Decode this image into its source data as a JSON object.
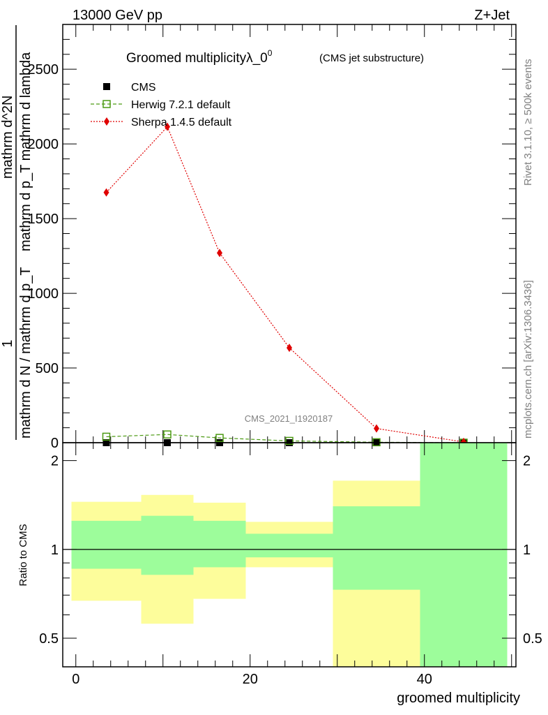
{
  "header": {
    "energy_label": "13000 GeV pp",
    "process_label": "Z+Jet",
    "title_main": "Groomed multiplicity",
    "title_lambda": "λ_0",
    "title_sup": "0",
    "title_sub": "(CMS jet substructure)",
    "side_label_top": "Rivet 3.1.10, ≥ 500k events",
    "side_label_bottom": "mcplots.cern.ch [arXiv:1306.3436]",
    "watermark": "CMS_2021_I1920187"
  },
  "colors": {
    "cms": "#000000",
    "herwig": "#4c9a13",
    "sherpa": "#e00000",
    "band_inner": "#9dfd9b",
    "band_outer": "#fdfd9b"
  },
  "chart_data": [
    {
      "type": "scatter",
      "panel": "main",
      "ylabel_numerator": "1",
      "ylabel_denominator": "mathrm d N / mathrm d p_T",
      "ylabel_right_top": "mathrm d^2N",
      "ylabel_right_bottom": "mathrm d p_T mathrm d lambda",
      "ylim": [
        0,
        2800
      ],
      "yticks": [
        0,
        500,
        1000,
        1500,
        2000,
        2500
      ],
      "xlim": [
        -1.5,
        50.5
      ],
      "legend_placement": "top-left",
      "series": [
        {
          "name": "CMS",
          "marker": "filled-square",
          "x": [
            3.5,
            10.5,
            16.5,
            24.5,
            34.5,
            44.5
          ],
          "y": [
            0,
            0,
            0,
            0,
            0,
            0
          ]
        },
        {
          "name": "Herwig 7.2.1 default",
          "marker": "open-square",
          "line": "dashed",
          "x": [
            3.5,
            10.5,
            16.5,
            24.5,
            34.5,
            44.5
          ],
          "y": [
            40,
            55,
            32,
            12,
            3,
            0
          ]
        },
        {
          "name": "Sherpa 1.4.5 default",
          "marker": "diamond",
          "line": "dotted",
          "x": [
            3.5,
            10.5,
            16.5,
            24.5,
            34.5,
            44.5
          ],
          "y": [
            1675,
            2115,
            1270,
            635,
            95,
            5
          ]
        }
      ]
    },
    {
      "type": "bar",
      "panel": "ratio",
      "ylabel": "Ratio to CMS",
      "xlabel": "groomed multiplicity",
      "log_y": true,
      "ylim": [
        0.4,
        2.3
      ],
      "yticks": [
        0.5,
        1,
        2
      ],
      "xticks": [
        0,
        20,
        40
      ],
      "xlim": [
        -1.5,
        50.5
      ],
      "bins": [
        {
          "xlo": -0.5,
          "xhi": 7.5,
          "inner_lo": 0.86,
          "inner_hi": 1.25,
          "outer_lo": 0.67,
          "outer_hi": 1.45
        },
        {
          "xlo": 7.5,
          "xhi": 13.5,
          "inner_lo": 0.82,
          "inner_hi": 1.3,
          "outer_lo": 0.56,
          "outer_hi": 1.53
        },
        {
          "xlo": 13.5,
          "xhi": 19.5,
          "inner_lo": 0.87,
          "inner_hi": 1.25,
          "outer_lo": 0.68,
          "outer_hi": 1.44
        },
        {
          "xlo": 19.5,
          "xhi": 29.5,
          "inner_lo": 0.94,
          "inner_hi": 1.13,
          "outer_lo": 0.87,
          "outer_hi": 1.24
        },
        {
          "xlo": 29.5,
          "xhi": 39.5,
          "inner_lo": 0.73,
          "inner_hi": 1.4,
          "outer_lo": 0.4,
          "outer_hi": 1.71
        },
        {
          "xlo": 39.5,
          "xhi": 49.5,
          "inner_lo": 0.4,
          "inner_hi": 2.3,
          "outer_lo": 0.4,
          "outer_hi": 2.3
        }
      ],
      "reference_line": 1
    }
  ]
}
